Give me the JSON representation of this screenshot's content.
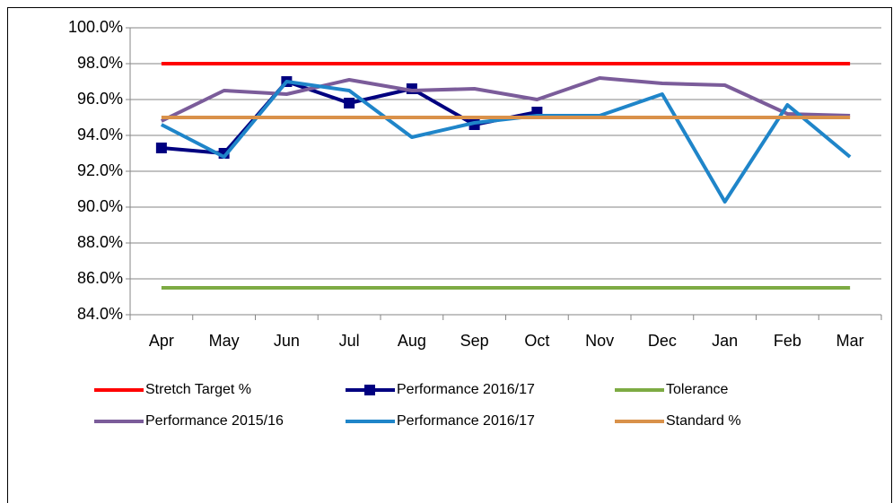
{
  "chart_data": {
    "type": "line",
    "categories": [
      "Apr",
      "May",
      "Jun",
      "Jul",
      "Aug",
      "Sep",
      "Oct",
      "Nov",
      "Dec",
      "Jan",
      "Feb",
      "Mar"
    ],
    "series": [
      {
        "name": "Stretch Target %",
        "color": "#ff0000",
        "values": [
          98,
          98,
          98,
          98,
          98,
          98,
          98,
          98,
          98,
          98,
          98,
          98
        ]
      },
      {
        "name": "Performance 2016/17",
        "color": "#000080",
        "marker": "square",
        "values": [
          93.3,
          93.0,
          97.0,
          95.8,
          96.6,
          94.6,
          95.3,
          null,
          null,
          null,
          null,
          null
        ]
      },
      {
        "name": "Tolerance",
        "color": "#7dab43",
        "values": [
          85.5,
          85.5,
          85.5,
          85.5,
          85.5,
          85.5,
          85.5,
          85.5,
          85.5,
          85.5,
          85.5,
          85.5
        ]
      },
      {
        "name": "Performance 2015/16",
        "color": "#7b5c9a",
        "values": [
          94.8,
          96.5,
          96.3,
          97.1,
          96.5,
          96.6,
          96.0,
          97.2,
          96.9,
          96.8,
          95.2,
          95.1
        ]
      },
      {
        "name": "Performance 2016/17",
        "color": "#1f85c9",
        "values": [
          94.6,
          92.8,
          97.0,
          96.5,
          93.9,
          94.7,
          95.1,
          95.1,
          96.3,
          90.3,
          95.7,
          92.8
        ]
      },
      {
        "name": "Standard %",
        "color": "#d9914a",
        "values": [
          95,
          95,
          95,
          95,
          95,
          95,
          95,
          95,
          95,
          95,
          95,
          95
        ]
      }
    ],
    "ylim": [
      84,
      100
    ],
    "yticks": [
      {
        "value": 84,
        "label": "84.0%"
      },
      {
        "value": 86,
        "label": "86.0%"
      },
      {
        "value": 88,
        "label": "88.0%"
      },
      {
        "value": 90,
        "label": "90.0%"
      },
      {
        "value": 92,
        "label": "92.0%"
      },
      {
        "value": 94,
        "label": "94.0%"
      },
      {
        "value": 96,
        "label": "96.0%"
      },
      {
        "value": 98,
        "label": "98.0%"
      },
      {
        "value": 100,
        "label": "100.0%"
      }
    ],
    "grid": true,
    "legend": "bottom"
  }
}
